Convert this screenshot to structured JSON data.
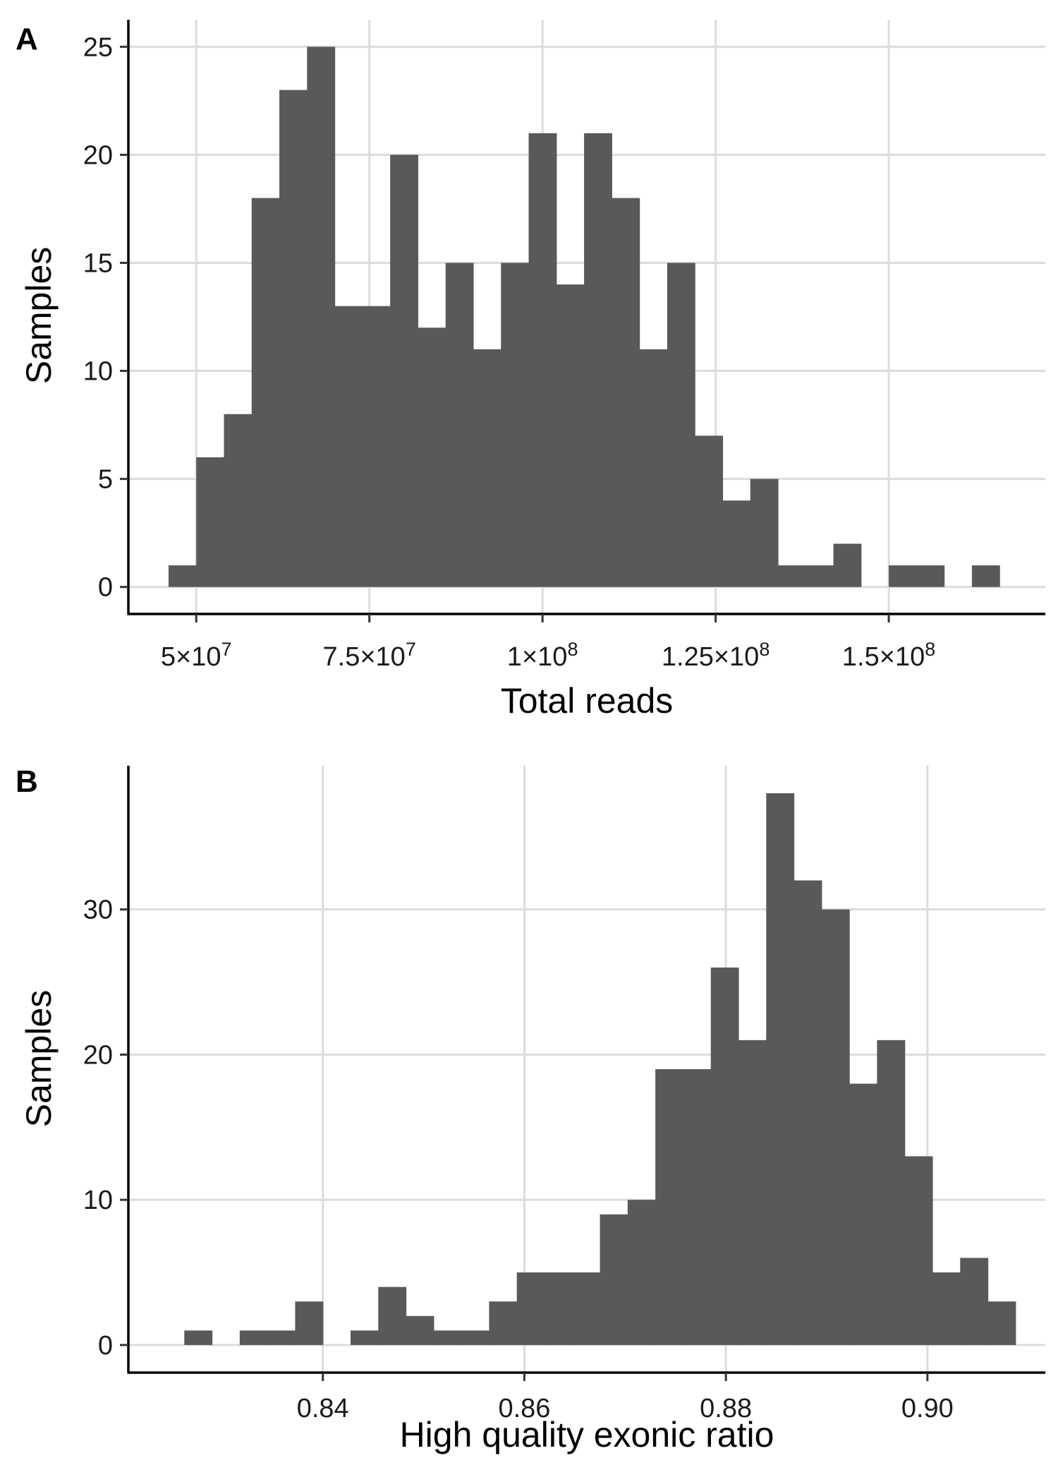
{
  "chart_data": [
    {
      "type": "bar",
      "panel_label": "A",
      "xlabel": "Total reads",
      "ylabel": "Samples",
      "x_ticks": [
        {
          "value": 50000000,
          "mantissa": "5",
          "exponent": "7"
        },
        {
          "value": 75000000,
          "mantissa": "7.5",
          "exponent": "7"
        },
        {
          "value": 100000000,
          "mantissa": "1",
          "exponent": "8"
        },
        {
          "value": 125000000,
          "mantissa": "1.25",
          "exponent": "8"
        },
        {
          "value": 150000000,
          "mantissa": "1.5",
          "exponent": "8"
        }
      ],
      "y_ticks": [
        0,
        5,
        10,
        15,
        20,
        25
      ],
      "xlim": [
        40200000,
        172600000
      ],
      "ylim": [
        -1.25,
        26.25
      ],
      "grid": true,
      "bin_width": 4000000,
      "bin_start": 46000000,
      "counts": [
        1,
        6,
        8,
        18,
        23,
        25,
        13,
        13,
        20,
        12,
        15,
        11,
        15,
        21,
        14,
        21,
        18,
        11,
        15,
        7,
        4,
        5,
        1,
        1,
        2,
        0,
        1,
        1,
        0,
        1
      ],
      "bar_color": "#595959"
    },
    {
      "type": "bar",
      "panel_label": "B",
      "xlabel": "High quality exonic ratio",
      "ylabel": "Samples",
      "x_ticks": [
        {
          "value": 0.84,
          "label": "0.84"
        },
        {
          "value": 0.86,
          "label": "0.86"
        },
        {
          "value": 0.88,
          "label": "0.88"
        },
        {
          "value": 0.9,
          "label": "0.90"
        }
      ],
      "y_ticks": [
        0,
        10,
        20,
        30
      ],
      "xlim": [
        0.8207,
        0.9117
      ],
      "ylim": [
        -1.9,
        39.9
      ],
      "grid": true,
      "bin_width": 0.00275,
      "bin_start": 0.82625,
      "counts": [
        1,
        0,
        1,
        1,
        3,
        0,
        1,
        4,
        2,
        1,
        1,
        3,
        5,
        5,
        5,
        9,
        10,
        19,
        19,
        26,
        21,
        38,
        32,
        30,
        18,
        21,
        13,
        5,
        6,
        3
      ],
      "bar_color": "#595959"
    }
  ]
}
